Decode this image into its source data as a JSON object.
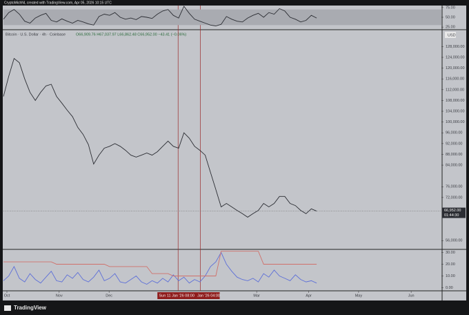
{
  "header": {
    "credit": "CryptoMichNL created with TradingView.com, Apr 05, 2026 10:15 UTC",
    "symbol": "Bitcoin · U.S. Dollar · 4h · Coinbase",
    "ohlc": "O66,909.76 H67,037.97 L66,862.48 C66,952.00 −43.41 (−0.06%)",
    "currency": "USD",
    "countdown": "01:44:30",
    "brand": "TradingView"
  },
  "chart_data": [
    {
      "type": "line",
      "name": "price",
      "xlim": [
        0,
        82.5
      ],
      "ylim": [
        53000,
        134000
      ],
      "yticks": [
        {
          "value": 128000,
          "label": "128,000.00"
        },
        {
          "value": 124000,
          "label": "124,000.00"
        },
        {
          "value": 120000,
          "label": "120,000.00"
        },
        {
          "value": 116000,
          "label": "116,000.00"
        },
        {
          "value": 112000,
          "label": "112,000.00"
        },
        {
          "value": 108000,
          "label": "108,000.00"
        },
        {
          "value": 104000,
          "label": "104,000.00"
        },
        {
          "value": 100000,
          "label": "100,000.00"
        },
        {
          "value": 96000,
          "label": "96,000.00"
        },
        {
          "value": 92000,
          "label": "92,000.00"
        },
        {
          "value": 88000,
          "label": "88,000.00"
        },
        {
          "value": 84000,
          "label": "84,000.00"
        },
        {
          "value": 76000,
          "label": "76,000.00"
        },
        {
          "value": 72000,
          "label": "72,000.00"
        },
        {
          "value": 56000,
          "label": "56,000.00"
        }
      ],
      "last_price": {
        "value": 66952,
        "label": "66,952.00"
      },
      "crosshairs": [
        {
          "value": 32.9,
          "label": "Sun 11 Jan '26  08:00"
        },
        {
          "value": 37.1,
          "label": "Jan '26  04:00"
        }
      ],
      "series": [
        {
          "color": "#2b2d33",
          "values": [
            109500,
            117000,
            123600,
            122000,
            116000,
            111000,
            108000,
            111000,
            113400,
            114000,
            109500,
            107000,
            104400,
            102000,
            98000,
            95400,
            91600,
            84400,
            87700,
            90300,
            91000,
            92000,
            91000,
            89500,
            87700,
            87000,
            87700,
            88500,
            87700,
            89000,
            91000,
            92900,
            91000,
            90300,
            96000,
            94000,
            91000,
            89500,
            87700,
            81300,
            75000,
            68500,
            69800,
            68500,
            67200,
            66000,
            64700,
            66000,
            67200,
            69800,
            68500,
            69800,
            72400,
            72400,
            69800,
            69000,
            67200,
            66000,
            67800,
            66952
          ]
        }
      ]
    },
    {
      "type": "line",
      "name": "rsi",
      "xlim": [
        0,
        82.5
      ],
      "ylim": [
        20,
        80
      ],
      "band": [
        30,
        70
      ],
      "yticks": [
        {
          "value": 75,
          "label": "75.00"
        },
        {
          "value": 50,
          "label": "50.00"
        },
        {
          "value": 25,
          "label": "25.00"
        }
      ],
      "series": [
        {
          "color": "#2b2d33",
          "values": [
            45,
            62,
            70,
            58,
            40,
            35,
            48,
            55,
            60,
            42,
            38,
            46,
            40,
            35,
            42,
            38,
            33,
            30,
            52,
            58,
            55,
            62,
            50,
            45,
            48,
            44,
            52,
            50,
            47,
            58,
            66,
            70,
            55,
            48,
            78,
            60,
            45,
            40,
            35,
            30,
            28,
            32,
            52,
            45,
            40,
            38,
            48,
            55,
            60,
            50,
            62,
            58,
            72,
            66,
            50,
            45,
            38,
            42,
            55,
            48
          ]
        }
      ]
    },
    {
      "type": "line",
      "name": "indicator",
      "xlim": [
        0,
        82.5
      ],
      "ylim": [
        -2,
        32
      ],
      "yticks": [
        {
          "value": 30,
          "label": "30.00"
        },
        {
          "value": 20,
          "label": "20.00"
        },
        {
          "value": 10,
          "label": "10.00"
        },
        {
          "value": 0,
          "label": "0.00"
        }
      ],
      "xticks": [
        {
          "value": 0.65,
          "label": "Oct"
        },
        {
          "value": 10.5,
          "label": "Nov"
        },
        {
          "value": 19.9,
          "label": "Dec"
        },
        {
          "value": 47.7,
          "label": "Mar"
        },
        {
          "value": 57.5,
          "label": "Apr"
        },
        {
          "value": 66.9,
          "label": "May"
        },
        {
          "value": 76.8,
          "label": "Jun"
        }
      ],
      "series": [
        {
          "color": "#5d6fd8",
          "values": [
            6,
            10,
            18,
            8,
            5,
            12,
            7,
            4,
            9,
            14,
            6,
            5,
            11,
            8,
            13,
            7,
            5,
            9,
            15,
            6,
            8,
            12,
            5,
            4,
            7,
            10,
            5,
            3,
            6,
            4,
            8,
            5,
            11,
            6,
            9,
            4,
            7,
            5,
            10,
            18,
            22,
            30,
            20,
            14,
            9,
            7,
            6,
            8,
            5,
            12,
            9,
            15,
            10,
            8,
            6,
            11,
            7,
            5,
            6,
            4
          ]
        },
        {
          "color": "#d0706a",
          "values": [
            22,
            22,
            22,
            22,
            22,
            22,
            22,
            22,
            22,
            22,
            20,
            20,
            20,
            20,
            20,
            20,
            20,
            20,
            20,
            20,
            18,
            18,
            18,
            18,
            18,
            18,
            18,
            18,
            12,
            12,
            12,
            12,
            10,
            10,
            10,
            10,
            10,
            10,
            10,
            10,
            10,
            31,
            31,
            31,
            31,
            31,
            31,
            31,
            31,
            20,
            20,
            20,
            20,
            20,
            20,
            20,
            20,
            20,
            20,
            20
          ]
        }
      ]
    }
  ]
}
